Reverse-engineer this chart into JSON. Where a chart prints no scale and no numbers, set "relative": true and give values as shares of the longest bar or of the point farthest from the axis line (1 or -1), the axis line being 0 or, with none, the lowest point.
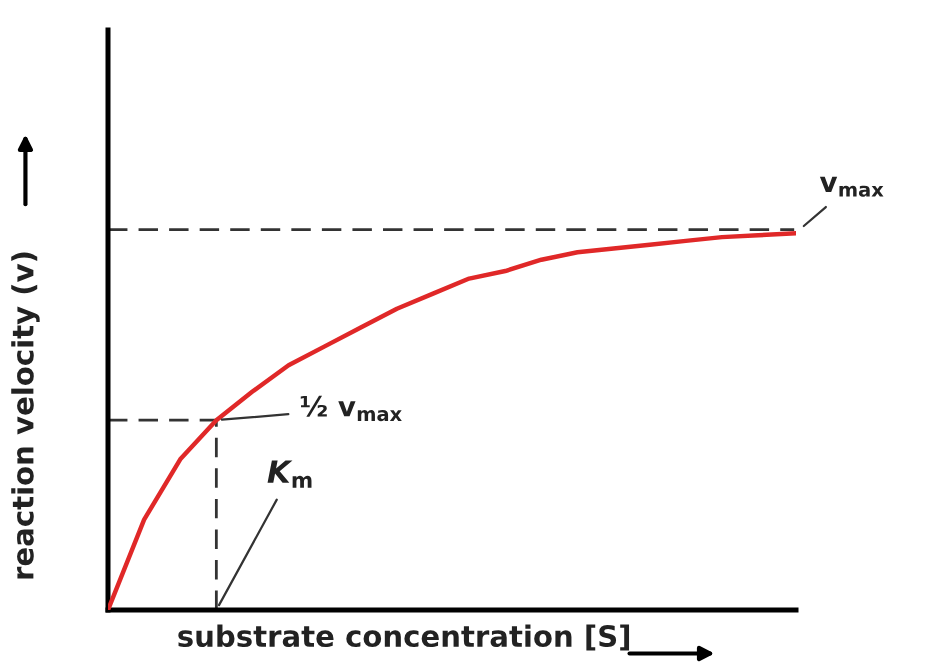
{
  "chart_data": {
    "type": "line",
    "relative": true,
    "xlabel": "substrate concentration [S]",
    "ylabel": "reaction velocity (v)",
    "categories": [
      null,
      null,
      null,
      null,
      null,
      null,
      null,
      null,
      null,
      null,
      null,
      null,
      null,
      null,
      null,
      null,
      null,
      null,
      null,
      null
    ],
    "series": [
      {
        "color": "#e02828",
        "values": [
          0,
          0.24,
          0.4,
          0.504,
          0.58,
          0.65,
          0.7,
          0.75,
          0.8,
          0.84,
          0.88,
          0.9,
          0.93,
          0.95,
          0.96,
          0.97,
          0.98,
          0.99,
          0.995,
          1
        ]
      }
    ],
    "ref_lines": [
      {
        "axis": "y",
        "value": 1.01,
        "label": "v$_{max}$",
        "line_style": "dashed",
        "color": "#333333"
      },
      {
        "axis": "y",
        "value": 0.504,
        "label": "½ v$_{max}$",
        "line_style": "dashed",
        "color": "#333333"
      }
    ],
    "annotations": [
      "K$_{m}$"
    ],
    "legend": false,
    "marker": "none",
    "line_style": "solid"
  }
}
